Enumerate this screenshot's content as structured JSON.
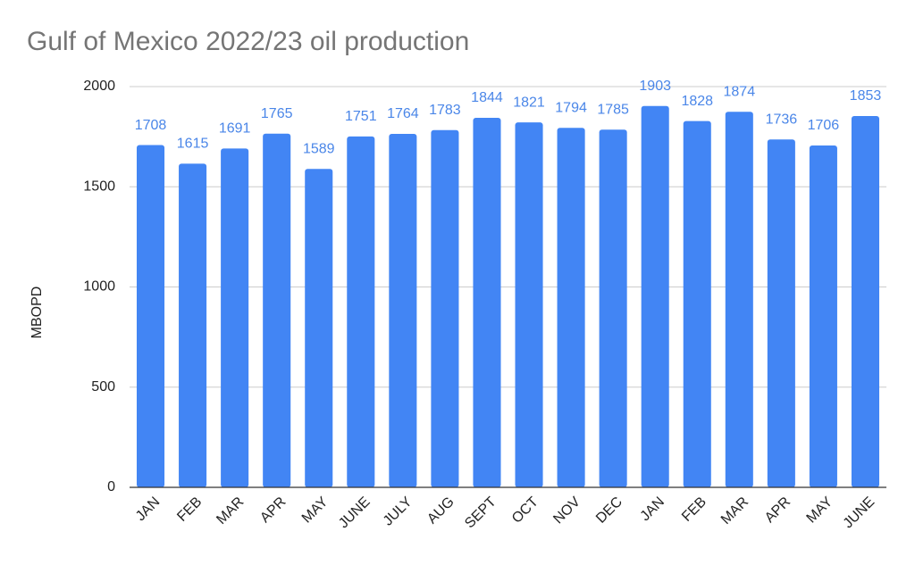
{
  "chart_data": {
    "type": "bar",
    "title": "Gulf of Mexico 2022/23 oil production",
    "y_label": "MBOPD",
    "categories": [
      "JAN",
      "FEB",
      "MAR",
      "APR",
      "MAY",
      "JUNE",
      "JULY",
      "AUG",
      "SEPT",
      "OCT",
      "NOV",
      "DEC",
      "JAN",
      "FEB",
      "MAR",
      "APR",
      "MAY",
      "JUNE"
    ],
    "values": [
      1708,
      1615,
      1691,
      1765,
      1589,
      1751,
      1764,
      1783,
      1844,
      1821,
      1794,
      1785,
      1903,
      1828,
      1874,
      1736,
      1706,
      1853
    ],
    "color": "#4285f4",
    "ylim": [
      0,
      2000
    ],
    "yticks": [
      0,
      500,
      1000,
      1500,
      2000
    ],
    "grid": true
  }
}
